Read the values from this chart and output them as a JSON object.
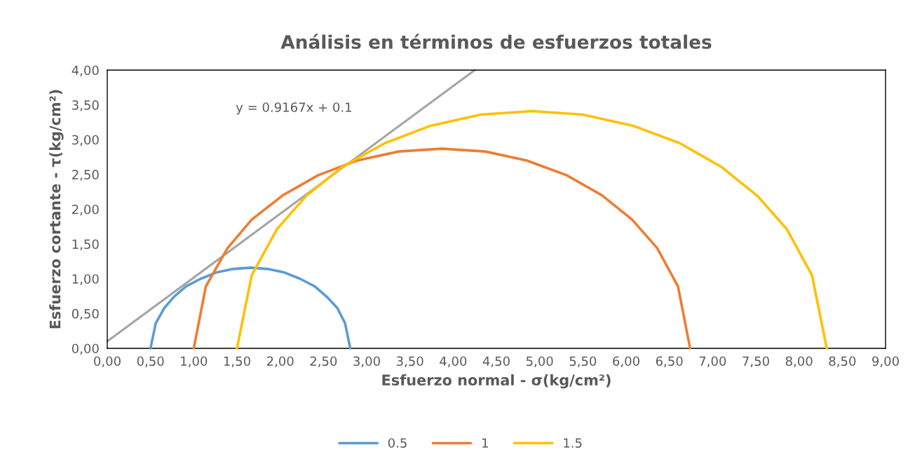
{
  "chart_data": {
    "type": "line",
    "title": "Análisis en términos de esfuerzos totales",
    "xlabel": "Esfuerzo normal - σ(kg/cm²)",
    "ylabel": "Esfuerzo cortante - τ(kg/cm²)",
    "xlim": [
      0,
      9
    ],
    "ylim": [
      0,
      4
    ],
    "xticks": [
      {
        "value": 0,
        "label": "0,00"
      },
      {
        "value": 0.5,
        "label": "0,50"
      },
      {
        "value": 1,
        "label": "1,00"
      },
      {
        "value": 1.5,
        "label": "1,50"
      },
      {
        "value": 2,
        "label": "2,00"
      },
      {
        "value": 2.5,
        "label": "2,50"
      },
      {
        "value": 3,
        "label": "3,00"
      },
      {
        "value": 3.5,
        "label": "3,50"
      },
      {
        "value": 4,
        "label": "4,00"
      },
      {
        "value": 4.5,
        "label": "4,50"
      },
      {
        "value": 5,
        "label": "5,00"
      },
      {
        "value": 5.5,
        "label": "5,50"
      },
      {
        "value": 6,
        "label": "6,00"
      },
      {
        "value": 6.5,
        "label": "6,50"
      },
      {
        "value": 7,
        "label": "7,00"
      },
      {
        "value": 7.5,
        "label": "7,50"
      },
      {
        "value": 8,
        "label": "8,00"
      },
      {
        "value": 8.5,
        "label": "8,50"
      },
      {
        "value": 9,
        "label": "9,00"
      }
    ],
    "yticks": [
      {
        "value": 0,
        "label": "0,00"
      },
      {
        "value": 0.5,
        "label": "0,50"
      },
      {
        "value": 1,
        "label": "1,00"
      },
      {
        "value": 1.5,
        "label": "1,50"
      },
      {
        "value": 2,
        "label": "2,00"
      },
      {
        "value": 2.5,
        "label": "2,50"
      },
      {
        "value": 3,
        "label": "3,00"
      },
      {
        "value": 3.5,
        "label": "3,50"
      },
      {
        "value": 4,
        "label": "4,00"
      }
    ],
    "grid": false,
    "legend": "bottom",
    "marker": "none",
    "line_style": "solid",
    "annotations": [
      "y = 0.9167x + 0.1"
    ],
    "series": [
      {
        "name": "0.5",
        "color": "#5b9bd5",
        "x": [
          0.5,
          0.56,
          0.66,
          0.77,
          0.91,
          1.08,
          1.26,
          1.45,
          1.66,
          1.86,
          2.05,
          2.23,
          2.4,
          2.54,
          2.66,
          2.75,
          2.81
        ],
        "values": [
          0,
          0.36,
          0.58,
          0.74,
          0.89,
          1.0,
          1.09,
          1.14,
          1.16,
          1.14,
          1.09,
          1.0,
          0.89,
          0.74,
          0.58,
          0.36,
          0
        ]
      },
      {
        "name": "1",
        "color": "#ed7d31",
        "x": [
          1.0,
          1.14,
          1.39,
          1.67,
          2.03,
          2.44,
          2.89,
          3.37,
          3.87,
          4.37,
          4.85,
          5.31,
          5.72,
          6.07,
          6.36,
          6.6,
          6.74
        ],
        "values": [
          0,
          0.89,
          1.44,
          1.85,
          2.2,
          2.49,
          2.7,
          2.83,
          2.87,
          2.83,
          2.7,
          2.49,
          2.2,
          1.85,
          1.44,
          0.89,
          0
        ]
      },
      {
        "name": "1.5",
        "color": "#ffc000",
        "x": [
          1.5,
          1.67,
          1.96,
          2.3,
          2.72,
          3.21,
          3.74,
          4.32,
          4.91,
          5.5,
          6.08,
          6.62,
          7.1,
          7.52,
          7.86,
          8.15,
          8.32
        ],
        "values": [
          0,
          1.05,
          1.71,
          2.19,
          2.61,
          2.95,
          3.2,
          3.36,
          3.41,
          3.36,
          3.2,
          2.95,
          2.61,
          2.19,
          1.71,
          1.05,
          0
        ]
      },
      {
        "color": "#a5a5a5",
        "x": [
          0,
          4.25
        ],
        "values": [
          0.1,
          4.0
        ]
      }
    ]
  }
}
